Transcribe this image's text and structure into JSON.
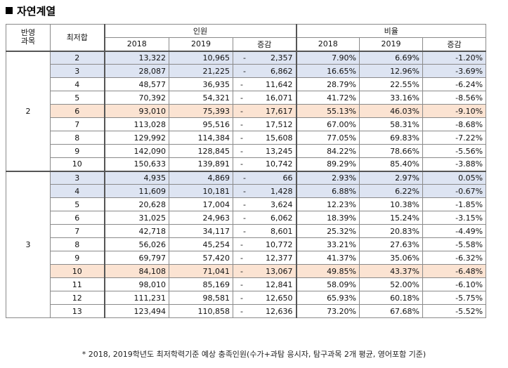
{
  "title": "자연계열",
  "headers": {
    "band_combo": "반영\n과목",
    "min_sum": "최저합",
    "group_count": "인원",
    "group_ratio": "비율",
    "y2018": "2018",
    "y2019": "2019",
    "change": "증감"
  },
  "groups": [
    {
      "label": "2",
      "rows": [
        {
          "min": "2",
          "c2018": "13,322",
          "c2019": "10,965",
          "cd_sign": "-",
          "cd": "2,357",
          "r2018": "7.90%",
          "r2019": "6.69%",
          "rd": "-1.20%",
          "hl": "blue"
        },
        {
          "min": "3",
          "c2018": "28,087",
          "c2019": "21,225",
          "cd_sign": "-",
          "cd": "6,862",
          "r2018": "16.65%",
          "r2019": "12.96%",
          "rd": "-3.69%",
          "hl": "blue"
        },
        {
          "min": "4",
          "c2018": "48,577",
          "c2019": "36,935",
          "cd_sign": "-",
          "cd": "11,642",
          "r2018": "28.79%",
          "r2019": "22.55%",
          "rd": "-6.24%",
          "hl": ""
        },
        {
          "min": "5",
          "c2018": "70,392",
          "c2019": "54,321",
          "cd_sign": "-",
          "cd": "16,071",
          "r2018": "41.72%",
          "r2019": "33.16%",
          "rd": "-8.56%",
          "hl": ""
        },
        {
          "min": "6",
          "c2018": "93,010",
          "c2019": "75,393",
          "cd_sign": "-",
          "cd": "17,617",
          "r2018": "55.13%",
          "r2019": "46.03%",
          "rd": "-9.10%",
          "hl": "orange"
        },
        {
          "min": "7",
          "c2018": "113,028",
          "c2019": "95,516",
          "cd_sign": "-",
          "cd": "17,512",
          "r2018": "67.00%",
          "r2019": "58.31%",
          "rd": "-8.68%",
          "hl": ""
        },
        {
          "min": "8",
          "c2018": "129,992",
          "c2019": "114,384",
          "cd_sign": "-",
          "cd": "15,608",
          "r2018": "77.05%",
          "r2019": "69.83%",
          "rd": "-7.22%",
          "hl": ""
        },
        {
          "min": "9",
          "c2018": "142,090",
          "c2019": "128,845",
          "cd_sign": "-",
          "cd": "13,245",
          "r2018": "84.22%",
          "r2019": "78.66%",
          "rd": "-5.56%",
          "hl": ""
        },
        {
          "min": "10",
          "c2018": "150,633",
          "c2019": "139,891",
          "cd_sign": "-",
          "cd": "10,742",
          "r2018": "89.29%",
          "r2019": "85.40%",
          "rd": "-3.88%",
          "hl": ""
        }
      ]
    },
    {
      "label": "3",
      "rows": [
        {
          "min": "3",
          "c2018": "4,935",
          "c2019": "4,869",
          "cd_sign": "-",
          "cd": "66",
          "r2018": "2.93%",
          "r2019": "2.97%",
          "rd": "0.05%",
          "hl": "blue"
        },
        {
          "min": "4",
          "c2018": "11,609",
          "c2019": "10,181",
          "cd_sign": "-",
          "cd": "1,428",
          "r2018": "6.88%",
          "r2019": "6.22%",
          "rd": "-0.67%",
          "hl": "blue"
        },
        {
          "min": "5",
          "c2018": "20,628",
          "c2019": "17,004",
          "cd_sign": "-",
          "cd": "3,624",
          "r2018": "12.23%",
          "r2019": "10.38%",
          "rd": "-1.85%",
          "hl": ""
        },
        {
          "min": "6",
          "c2018": "31,025",
          "c2019": "24,963",
          "cd_sign": "-",
          "cd": "6,062",
          "r2018": "18.39%",
          "r2019": "15.24%",
          "rd": "-3.15%",
          "hl": ""
        },
        {
          "min": "7",
          "c2018": "42,718",
          "c2019": "34,117",
          "cd_sign": "-",
          "cd": "8,601",
          "r2018": "25.32%",
          "r2019": "20.83%",
          "rd": "-4.49%",
          "hl": ""
        },
        {
          "min": "8",
          "c2018": "56,026",
          "c2019": "45,254",
          "cd_sign": "-",
          "cd": "10,772",
          "r2018": "33.21%",
          "r2019": "27.63%",
          "rd": "-5.58%",
          "hl": ""
        },
        {
          "min": "9",
          "c2018": "69,797",
          "c2019": "57,420",
          "cd_sign": "-",
          "cd": "12,377",
          "r2018": "41.37%",
          "r2019": "35.06%",
          "rd": "-6.32%",
          "hl": ""
        },
        {
          "min": "10",
          "c2018": "84,108",
          "c2019": "71,041",
          "cd_sign": "-",
          "cd": "13,067",
          "r2018": "49.85%",
          "r2019": "43.37%",
          "rd": "-6.48%",
          "hl": "orange"
        },
        {
          "min": "11",
          "c2018": "98,010",
          "c2019": "85,169",
          "cd_sign": "-",
          "cd": "12,841",
          "r2018": "58.09%",
          "r2019": "52.00%",
          "rd": "-6.10%",
          "hl": ""
        },
        {
          "min": "12",
          "c2018": "111,231",
          "c2019": "98,581",
          "cd_sign": "-",
          "cd": "12,650",
          "r2018": "65.93%",
          "r2019": "60.18%",
          "rd": "-5.75%",
          "hl": ""
        },
        {
          "min": "13",
          "c2018": "123,494",
          "c2019": "110,858",
          "cd_sign": "-",
          "cd": "12,636",
          "r2018": "73.20%",
          "r2019": "67.68%",
          "rd": "-5.52%",
          "hl": ""
        }
      ]
    }
  ],
  "footnote": "* 2018, 2019학년도 최저학력기준 예상 충족인원(수가+과탐 응시자, 탐구과목 2개 평균, 영어포함 기준)",
  "colors": {
    "blue": "#dde4f2",
    "orange": "#fbe3d2"
  }
}
